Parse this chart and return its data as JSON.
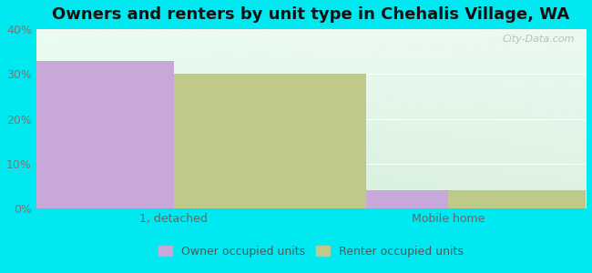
{
  "title": "Owners and renters by unit type in Chehalis Village, WA",
  "categories": [
    "1, detached",
    "Mobile home"
  ],
  "owner_values": [
    33.0,
    4.0
  ],
  "renter_values": [
    30.0,
    4.0
  ],
  "owner_color": "#c8a8d8",
  "renter_color": "#bfc98a",
  "owner_label": "Owner occupied units",
  "renter_label": "Renter occupied units",
  "ylim": [
    0,
    40
  ],
  "yticks": [
    0,
    10,
    20,
    30,
    40
  ],
  "background_outer": "#00e8f0",
  "watermark": "City-Data.com",
  "bar_width": 0.35,
  "title_fontsize": 13,
  "tick_fontsize": 9,
  "legend_fontsize": 9,
  "group_positions": [
    0.25,
    0.75
  ]
}
